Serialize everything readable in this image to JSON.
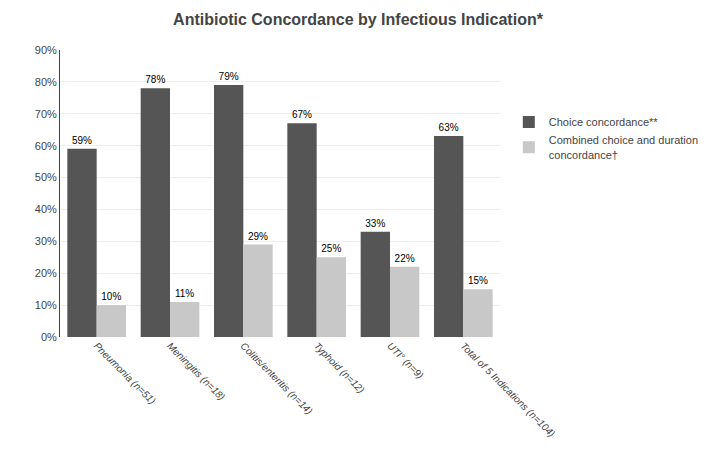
{
  "chart_data": {
    "type": "bar",
    "title": "Antibiotic Concordance by Infectious Indication*",
    "categories": [
      "Pneumonia (n=51)",
      "Meningitis (n=18)",
      "Colitis/enteritis (n=14)",
      "Typhoid (n=12)",
      "UTI° (n=9)",
      "Total of 5 Indications (n=104)"
    ],
    "series": [
      {
        "name": "Choice concordance**",
        "color": "#555555",
        "values": [
          59,
          78,
          79,
          67,
          33,
          63
        ],
        "value_labels": [
          "59%",
          "78%",
          "79%",
          "67%",
          "33%",
          "63%"
        ]
      },
      {
        "name": "Combined choice and duration\nconcordance†",
        "color": "#c8c8c8",
        "values": [
          10,
          11,
          29,
          25,
          22,
          15
        ],
        "value_labels": [
          "10%",
          "11%",
          "29%",
          "25%",
          "22%",
          "15%"
        ]
      }
    ],
    "ylim": [
      0,
      90
    ],
    "yticks": [
      {
        "value": 0,
        "label": "0%"
      },
      {
        "value": 10,
        "label": "10%"
      },
      {
        "value": 20,
        "label": "20%"
      },
      {
        "value": 30,
        "label": "30%"
      },
      {
        "value": 40,
        "label": "40%"
      },
      {
        "value": 50,
        "label": "50%"
      },
      {
        "value": 60,
        "label": "60%"
      },
      {
        "value": 70,
        "label": "70%"
      },
      {
        "value": 80,
        "label": "80%"
      },
      {
        "value": 90,
        "label": "90%"
      }
    ],
    "grid": true,
    "legend": "right",
    "data_labels": true
  }
}
